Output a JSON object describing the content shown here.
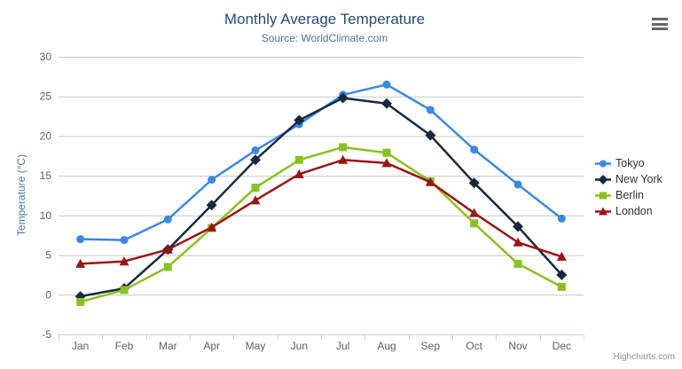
{
  "chart": {
    "title": "Monthly Average Temperature",
    "subtitle": "Source: WorldClimate.com",
    "credits": "Highcharts.com",
    "menu_icon": "hamburger-menu-icon",
    "colors": {
      "title": "#274b6d",
      "subtitle": "#4d759e",
      "axis_label": "#606060",
      "axis_title": "#4d759e",
      "grid": "#c8c8c8",
      "axis_line": "#c0d0e0",
      "legend_text": "#333333",
      "credits_text": "#909090",
      "menu_icon_color": "#666666"
    }
  },
  "chart_data": {
    "type": "line",
    "title": "Monthly Average Temperature",
    "subtitle": "Source: WorldClimate.com",
    "categories": [
      "Jan",
      "Feb",
      "Mar",
      "Apr",
      "May",
      "Jun",
      "Jul",
      "Aug",
      "Sep",
      "Oct",
      "Nov",
      "Dec"
    ],
    "xlabel": "",
    "ylabel": "Temperature (°C)",
    "ylim": [
      -5,
      30
    ],
    "yticks": [
      -5,
      0,
      5,
      10,
      15,
      20,
      25,
      30
    ],
    "grid": true,
    "legend_position": "right",
    "series": [
      {
        "name": "Tokyo",
        "color": "#3c87e1",
        "marker": "circle",
        "values": [
          7.0,
          6.9,
          9.5,
          14.5,
          18.2,
          21.5,
          25.2,
          26.5,
          23.3,
          18.3,
          13.9,
          9.6
        ]
      },
      {
        "name": "New York",
        "color": "#16293e",
        "marker": "diamond",
        "values": [
          -0.2,
          0.8,
          5.7,
          11.3,
          17.0,
          22.0,
          24.8,
          24.1,
          20.1,
          14.1,
          8.6,
          2.5
        ]
      },
      {
        "name": "Berlin",
        "color": "#8ac122",
        "marker": "square",
        "values": [
          -0.9,
          0.6,
          3.5,
          8.4,
          13.5,
          17.0,
          18.6,
          17.9,
          14.3,
          9.0,
          3.9,
          1.0
        ]
      },
      {
        "name": "London",
        "color": "#991414",
        "marker": "triangle",
        "values": [
          3.9,
          4.2,
          5.7,
          8.5,
          11.9,
          15.2,
          17.0,
          16.6,
          14.2,
          10.3,
          6.6,
          4.8
        ]
      }
    ]
  }
}
